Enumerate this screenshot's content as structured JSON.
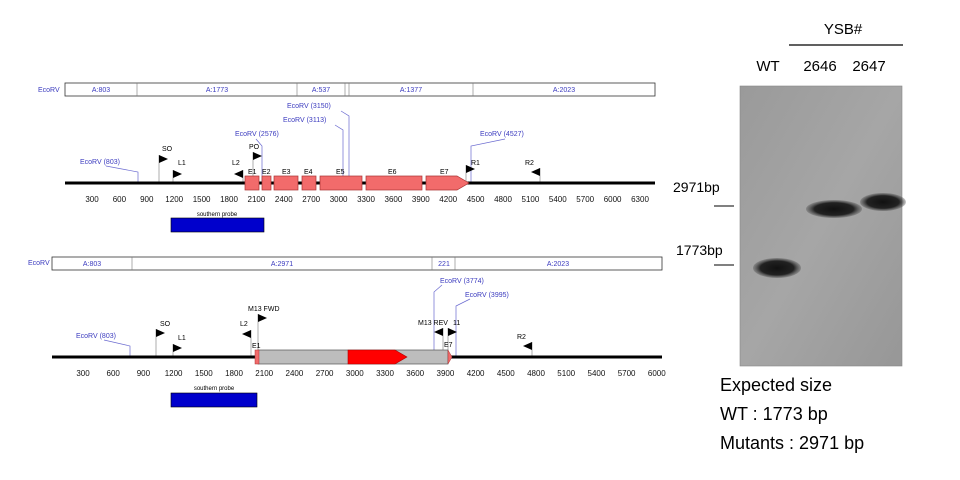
{
  "map1": {
    "enzyme_label": "EcoRV",
    "segments": [
      "A:803",
      "A:1773",
      "A:537",
      "A:1377",
      "A:2023"
    ],
    "sites": [
      "EcoRV (803)",
      "EcoRV (2576)",
      "EcoRV (3113)",
      "EcoRV (3150)",
      "EcoRV (4527)"
    ],
    "primers": [
      "SO",
      "L1",
      "L2",
      "PO",
      "R1",
      "R2"
    ],
    "exons": [
      "E1",
      "E2",
      "E3",
      "E4",
      "E5",
      "E6",
      "E7"
    ],
    "ticks": [
      "300",
      "600",
      "900",
      "1200",
      "1500",
      "1800",
      "2100",
      "2400",
      "2700",
      "3000",
      "3300",
      "3600",
      "3900",
      "4200",
      "4500",
      "4800",
      "5100",
      "5400",
      "5700",
      "6000",
      "6300"
    ],
    "probe_label": "southern probe"
  },
  "map2": {
    "enzyme_label": "EcoRV",
    "segments": [
      "A:803",
      "A:2971",
      "221",
      "A:2023"
    ],
    "sites": [
      "EcoRV (803)",
      "EcoRV (3774)",
      "EcoRV (3995)"
    ],
    "primers": [
      "SO",
      "L1",
      "L2",
      "M13 FWD",
      "M13 REV",
      "11",
      "R2"
    ],
    "exons": [
      "E1",
      "E7"
    ],
    "ticks": [
      "300",
      "600",
      "900",
      "1200",
      "1500",
      "1800",
      "2100",
      "2400",
      "2700",
      "3000",
      "3300",
      "3600",
      "3900",
      "4200",
      "4500",
      "4800",
      "5100",
      "5400",
      "5700",
      "6000"
    ],
    "probe_label": "southern probe"
  },
  "gel": {
    "group_label": "YSB#",
    "lanes": [
      "WT",
      "2646",
      "2647"
    ],
    "size_markers": [
      "2971bp",
      "1773bp"
    ]
  },
  "expected": {
    "title": "Expected size",
    "wt_line": "WT :  1773 bp",
    "mutant_line": "Mutants :  2971 bp"
  },
  "colors": {
    "site_text": "#3b3bbf",
    "exon_fill": "#f26b6b",
    "cassette_fill": "#bdbdbd",
    "marker_fill": "#ff0000",
    "probe_fill": "#0000cc"
  }
}
